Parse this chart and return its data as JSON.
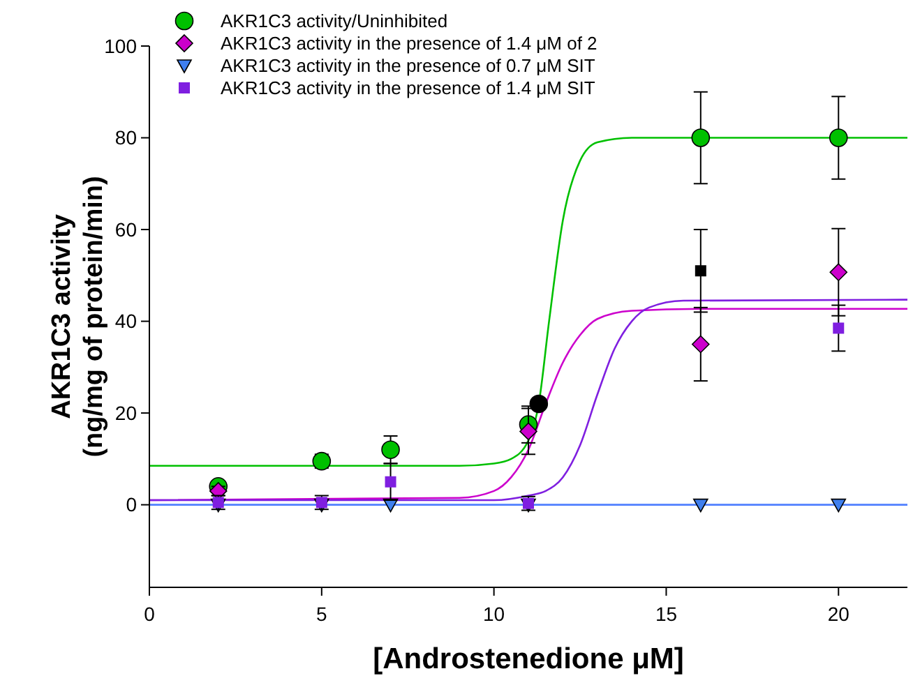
{
  "chart_data": {
    "type": "scatter",
    "xlabel": "[Androstenedione μM]",
    "ylabel": "AKR1C3 activity\n(ng/mg of protein/min)",
    "xlim": [
      0,
      22
    ],
    "ylim": [
      -18,
      100
    ],
    "xticks": [
      0,
      5,
      10,
      15,
      20
    ],
    "yticks": [
      0,
      20,
      40,
      60,
      80,
      100
    ],
    "grid": false,
    "legend": "top left",
    "series": [
      {
        "type": "line",
        "color": "#00c000",
        "marker": "none",
        "x": [
          0,
          9,
          10,
          10.5,
          11,
          11.3,
          11.6,
          12,
          12.5,
          13,
          14,
          22
        ],
        "values": [
          8.5,
          8.5,
          9,
          10,
          14,
          22,
          40,
          62,
          75,
          79,
          80,
          80
        ]
      },
      {
        "type": "line",
        "color": "#cc00cc",
        "marker": "none",
        "x": [
          0,
          9,
          10,
          10.5,
          11,
          11.5,
          12,
          12.5,
          13,
          14,
          16,
          22
        ],
        "values": [
          1,
          1.5,
          3,
          6,
          12,
          22,
          31,
          37,
          40.5,
          42.3,
          42.7,
          42.7
        ]
      },
      {
        "type": "line",
        "color": "#7f1fe0",
        "marker": "none",
        "x": [
          0,
          10,
          11,
          11.5,
          12,
          12.5,
          13,
          13.5,
          14,
          14.5,
          15.5,
          22
        ],
        "values": [
          1,
          1,
          2,
          3,
          6,
          13,
          24,
          34,
          40,
          43,
          44.5,
          44.7
        ]
      },
      {
        "type": "line",
        "color": "#4f7fff",
        "marker": "none",
        "x": [
          0,
          22
        ],
        "values": [
          0,
          0
        ]
      },
      {
        "name": "AKR1C3 activity/Uninhibited",
        "color": "#00c000",
        "marker": "circle",
        "x": [
          2,
          5,
          7,
          11,
          16,
          20
        ],
        "values": [
          4,
          9.5,
          12,
          17.5,
          80,
          80
        ],
        "errors": [
          1,
          1.5,
          3,
          4,
          10,
          9
        ]
      },
      {
        "name": "AKR1C3 activity in the presence of 1.4 μM of 2",
        "color": "#cc00cc",
        "marker": "diamond",
        "x": [
          2,
          11,
          16,
          20
        ],
        "values": [
          3,
          16,
          35,
          50.7
        ],
        "errors": [
          1,
          5,
          8,
          9.5
        ]
      },
      {
        "name": "AKR1C3 activity  in the presence of  0.7 μM SIT",
        "color": "#3f7fef",
        "marker": "triangle",
        "x": [
          2,
          5,
          7,
          11,
          16,
          20
        ],
        "values": [
          0,
          0,
          0,
          0,
          0,
          0
        ]
      },
      {
        "name": "AKR1C3 activity  in the presence of  1.4 μM SIT",
        "color": "#7f1fe0",
        "marker": "square",
        "x": [
          2,
          5,
          7,
          11,
          20
        ],
        "values": [
          0.5,
          0.5,
          5,
          0.3,
          38.5
        ],
        "errors": [
          1.5,
          1.5,
          4,
          1.5,
          5
        ]
      },
      {
        "color": "#000000",
        "marker": "circle",
        "x": [
          11.3
        ],
        "values": [
          22
        ]
      },
      {
        "color": "#000000",
        "marker": "square",
        "x": [
          16
        ],
        "values": [
          51
        ],
        "errors": [
          9
        ]
      }
    ]
  }
}
